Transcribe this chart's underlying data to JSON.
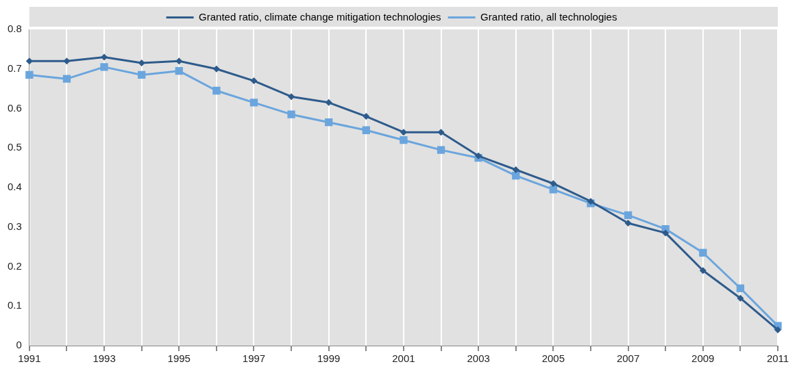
{
  "chart_data": {
    "type": "line",
    "categories": [
      "1991",
      null,
      "1993",
      null,
      "1995",
      null,
      "1997",
      null,
      "1999",
      null,
      "2001",
      null,
      "2003",
      null,
      "2005",
      null,
      "2007",
      null,
      "2009",
      null,
      "2011"
    ],
    "series": [
      {
        "name": "Granted ratio, climate change mitigation technologies",
        "color": "#2e5b8c",
        "marker": "diamond",
        "values": [
          0.72,
          0.72,
          0.73,
          0.715,
          0.72,
          0.7,
          0.67,
          0.63,
          0.615,
          0.58,
          0.54,
          0.54,
          0.48,
          0.445,
          0.41,
          0.365,
          0.31,
          0.285,
          0.19,
          0.12,
          0.04
        ]
      },
      {
        "name": "Granted ratio, all technologies",
        "color": "#6aa5dd",
        "marker": "square",
        "values": [
          0.685,
          0.675,
          0.705,
          0.685,
          0.695,
          0.645,
          0.615,
          0.585,
          0.565,
          0.545,
          0.52,
          0.495,
          0.475,
          0.43,
          0.395,
          0.36,
          0.33,
          0.295,
          0.235,
          0.145,
          0.05
        ]
      }
    ],
    "ylim": [
      0,
      0.8
    ],
    "yticks": [
      0,
      0.1,
      0.2,
      0.3,
      0.4,
      0.5,
      0.6,
      0.7,
      0.8
    ],
    "grid": "x",
    "legend": "top",
    "line_style": "solid"
  }
}
